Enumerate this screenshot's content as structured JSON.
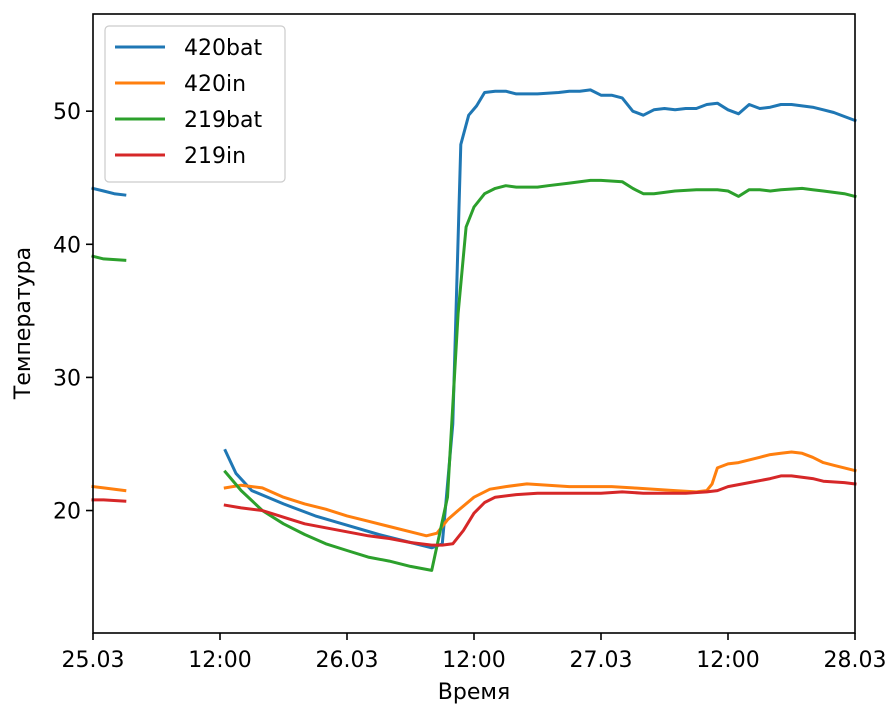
{
  "chart_data": {
    "type": "line",
    "title": "",
    "xlabel": "Время",
    "ylabel": "Температура",
    "xlim": [
      "2019-03-25T00:00",
      "2019-03-28T00:00"
    ],
    "ylim": [
      10.8,
      57.3
    ],
    "x_ticks": [
      {
        "value": "2019-03-25T00:00",
        "label": "25.03"
      },
      {
        "value": "2019-03-25T12:00",
        "label": "12:00"
      },
      {
        "value": "2019-03-26T00:00",
        "label": "26.03"
      },
      {
        "value": "2019-03-26T12:00",
        "label": "12:00"
      },
      {
        "value": "2019-03-27T00:00",
        "label": "27.03"
      },
      {
        "value": "2019-03-27T12:00",
        "label": "12:00"
      },
      {
        "value": "2019-03-28T00:00",
        "label": "28.03"
      }
    ],
    "y_ticks": [
      {
        "value": 20,
        "label": "20"
      },
      {
        "value": 30,
        "label": "30"
      },
      {
        "value": 40,
        "label": "40"
      },
      {
        "value": 50,
        "label": "50"
      }
    ],
    "grid": false,
    "legend_position": "top-left",
    "series": [
      {
        "name": "420bat",
        "color": "#1f77b4",
        "segments": [
          [
            [
              "2019-03-25T00:00",
              44.2
            ],
            [
              "2019-03-25T01:00",
              44.0
            ],
            [
              "2019-03-25T02:00",
              43.8
            ],
            [
              "2019-03-25T03:00",
              43.7
            ]
          ],
          [
            [
              "2019-03-25T12:30",
              24.5
            ],
            [
              "2019-03-25T13:30",
              22.8
            ],
            [
              "2019-03-25T15:00",
              21.5
            ],
            [
              "2019-03-25T18:00",
              20.5
            ],
            [
              "2019-03-25T21:00",
              19.6
            ],
            [
              "2019-03-26T00:00",
              18.9
            ],
            [
              "2019-03-26T03:00",
              18.2
            ],
            [
              "2019-03-26T06:00",
              17.6
            ],
            [
              "2019-03-26T08:00",
              17.2
            ],
            [
              "2019-03-26T09:00",
              17.5
            ],
            [
              "2019-03-26T10:00",
              26.5
            ],
            [
              "2019-03-26T10:45",
              47.5
            ],
            [
              "2019-03-26T11:30",
              49.7
            ],
            [
              "2019-03-26T12:15",
              50.4
            ],
            [
              "2019-03-26T13:00",
              51.4
            ],
            [
              "2019-03-26T14:00",
              51.5
            ],
            [
              "2019-03-26T15:00",
              51.5
            ],
            [
              "2019-03-26T16:00",
              51.3
            ],
            [
              "2019-03-26T18:00",
              51.3
            ],
            [
              "2019-03-26T20:00",
              51.4
            ],
            [
              "2019-03-26T21:00",
              51.5
            ],
            [
              "2019-03-26T22:00",
              51.5
            ],
            [
              "2019-03-26T23:00",
              51.6
            ],
            [
              "2019-03-27T00:00",
              51.2
            ],
            [
              "2019-03-27T01:00",
              51.2
            ],
            [
              "2019-03-27T02:00",
              51.0
            ],
            [
              "2019-03-27T03:00",
              50.0
            ],
            [
              "2019-03-27T04:00",
              49.7
            ],
            [
              "2019-03-27T05:00",
              50.1
            ],
            [
              "2019-03-27T06:00",
              50.2
            ],
            [
              "2019-03-27T07:00",
              50.1
            ],
            [
              "2019-03-27T08:00",
              50.2
            ],
            [
              "2019-03-27T09:00",
              50.2
            ],
            [
              "2019-03-27T10:00",
              50.5
            ],
            [
              "2019-03-27T11:00",
              50.6
            ],
            [
              "2019-03-27T12:00",
              50.1
            ],
            [
              "2019-03-27T13:00",
              49.8
            ],
            [
              "2019-03-27T14:00",
              50.5
            ],
            [
              "2019-03-27T15:00",
              50.2
            ],
            [
              "2019-03-27T16:00",
              50.3
            ],
            [
              "2019-03-27T17:00",
              50.5
            ],
            [
              "2019-03-27T18:00",
              50.5
            ],
            [
              "2019-03-27T19:00",
              50.4
            ],
            [
              "2019-03-27T20:00",
              50.3
            ],
            [
              "2019-03-27T21:00",
              50.1
            ],
            [
              "2019-03-27T22:00",
              49.9
            ],
            [
              "2019-03-27T23:00",
              49.6
            ],
            [
              "2019-03-28T00:00",
              49.3
            ]
          ]
        ]
      },
      {
        "name": "420in",
        "color": "#ff7f0e",
        "segments": [
          [
            [
              "2019-03-25T00:00",
              21.8
            ],
            [
              "2019-03-25T01:00",
              21.7
            ],
            [
              "2019-03-25T03:00",
              21.5
            ]
          ],
          [
            [
              "2019-03-25T12:30",
              21.7
            ],
            [
              "2019-03-25T14:00",
              21.9
            ],
            [
              "2019-03-25T16:00",
              21.7
            ],
            [
              "2019-03-25T18:00",
              21.0
            ],
            [
              "2019-03-25T20:00",
              20.5
            ],
            [
              "2019-03-25T22:00",
              20.1
            ],
            [
              "2019-03-26T00:00",
              19.6
            ],
            [
              "2019-03-26T02:00",
              19.2
            ],
            [
              "2019-03-26T04:00",
              18.8
            ],
            [
              "2019-03-26T06:00",
              18.4
            ],
            [
              "2019-03-26T07:30",
              18.1
            ],
            [
              "2019-03-26T08:30",
              18.3
            ],
            [
              "2019-03-26T09:30",
              19.3
            ],
            [
              "2019-03-26T10:30",
              20.0
            ],
            [
              "2019-03-26T12:00",
              21.0
            ],
            [
              "2019-03-26T13:30",
              21.6
            ],
            [
              "2019-03-26T15:00",
              21.8
            ],
            [
              "2019-03-26T17:00",
              22.0
            ],
            [
              "2019-03-26T19:00",
              21.9
            ],
            [
              "2019-03-26T21:00",
              21.8
            ],
            [
              "2019-03-26T23:00",
              21.8
            ],
            [
              "2019-03-27T01:00",
              21.8
            ],
            [
              "2019-03-27T03:00",
              21.7
            ],
            [
              "2019-03-27T05:00",
              21.6
            ],
            [
              "2019-03-27T07:00",
              21.5
            ],
            [
              "2019-03-27T09:00",
              21.4
            ],
            [
              "2019-03-27T10:00",
              21.5
            ],
            [
              "2019-03-27T10:30",
              22.0
            ],
            [
              "2019-03-27T11:00",
              23.2
            ],
            [
              "2019-03-27T12:00",
              23.5
            ],
            [
              "2019-03-27T13:00",
              23.6
            ],
            [
              "2019-03-27T14:00",
              23.8
            ],
            [
              "2019-03-27T15:00",
              24.0
            ],
            [
              "2019-03-27T16:00",
              24.2
            ],
            [
              "2019-03-27T17:00",
              24.3
            ],
            [
              "2019-03-27T18:00",
              24.4
            ],
            [
              "2019-03-27T19:00",
              24.3
            ],
            [
              "2019-03-27T20:00",
              24.0
            ],
            [
              "2019-03-27T21:00",
              23.6
            ],
            [
              "2019-03-27T22:00",
              23.4
            ],
            [
              "2019-03-27T23:00",
              23.2
            ],
            [
              "2019-03-28T00:00",
              23.0
            ]
          ]
        ]
      },
      {
        "name": "219bat",
        "color": "#2ca02c",
        "segments": [
          [
            [
              "2019-03-25T00:00",
              39.1
            ],
            [
              "2019-03-25T01:00",
              38.9
            ],
            [
              "2019-03-25T03:00",
              38.8
            ]
          ],
          [
            [
              "2019-03-25T12:30",
              22.9
            ],
            [
              "2019-03-25T14:00",
              21.5
            ],
            [
              "2019-03-25T16:00",
              20.0
            ],
            [
              "2019-03-25T18:00",
              19.0
            ],
            [
              "2019-03-25T20:00",
              18.2
            ],
            [
              "2019-03-25T22:00",
              17.5
            ],
            [
              "2019-03-26T00:00",
              17.0
            ],
            [
              "2019-03-26T02:00",
              16.5
            ],
            [
              "2019-03-26T04:00",
              16.2
            ],
            [
              "2019-03-26T06:00",
              15.8
            ],
            [
              "2019-03-26T08:00",
              15.5
            ],
            [
              "2019-03-26T09:30",
              21.0
            ],
            [
              "2019-03-26T10:30",
              34.8
            ],
            [
              "2019-03-26T11:15",
              41.3
            ],
            [
              "2019-03-26T12:00",
              42.8
            ],
            [
              "2019-03-26T13:00",
              43.8
            ],
            [
              "2019-03-26T14:00",
              44.2
            ],
            [
              "2019-03-26T15:00",
              44.4
            ],
            [
              "2019-03-26T16:00",
              44.3
            ],
            [
              "2019-03-26T18:00",
              44.3
            ],
            [
              "2019-03-26T19:00",
              44.4
            ],
            [
              "2019-03-26T21:00",
              44.6
            ],
            [
              "2019-03-26T23:00",
              44.8
            ],
            [
              "2019-03-27T00:00",
              44.8
            ],
            [
              "2019-03-27T02:00",
              44.7
            ],
            [
              "2019-03-27T03:00",
              44.2
            ],
            [
              "2019-03-27T04:00",
              43.8
            ],
            [
              "2019-03-27T05:00",
              43.8
            ],
            [
              "2019-03-27T07:00",
              44.0
            ],
            [
              "2019-03-27T09:00",
              44.1
            ],
            [
              "2019-03-27T11:00",
              44.1
            ],
            [
              "2019-03-27T12:00",
              44.0
            ],
            [
              "2019-03-27T13:00",
              43.6
            ],
            [
              "2019-03-27T14:00",
              44.1
            ],
            [
              "2019-03-27T15:00",
              44.1
            ],
            [
              "2019-03-27T16:00",
              44.0
            ],
            [
              "2019-03-27T17:00",
              44.1
            ],
            [
              "2019-03-27T19:00",
              44.2
            ],
            [
              "2019-03-27T20:00",
              44.1
            ],
            [
              "2019-03-27T21:00",
              44.0
            ],
            [
              "2019-03-27T22:00",
              43.9
            ],
            [
              "2019-03-27T23:00",
              43.8
            ],
            [
              "2019-03-28T00:00",
              43.6
            ]
          ]
        ]
      },
      {
        "name": "219in",
        "color": "#d62728",
        "segments": [
          [
            [
              "2019-03-25T00:00",
              20.8
            ],
            [
              "2019-03-25T01:00",
              20.8
            ],
            [
              "2019-03-25T03:00",
              20.7
            ]
          ],
          [
            [
              "2019-03-25T12:30",
              20.4
            ],
            [
              "2019-03-25T14:00",
              20.2
            ],
            [
              "2019-03-25T16:00",
              20.0
            ],
            [
              "2019-03-25T18:00",
              19.5
            ],
            [
              "2019-03-25T20:00",
              19.0
            ],
            [
              "2019-03-25T22:00",
              18.7
            ],
            [
              "2019-03-26T00:00",
              18.4
            ],
            [
              "2019-03-26T02:00",
              18.1
            ],
            [
              "2019-03-26T04:00",
              17.9
            ],
            [
              "2019-03-26T06:00",
              17.6
            ],
            [
              "2019-03-26T08:00",
              17.4
            ],
            [
              "2019-03-26T09:00",
              17.4
            ],
            [
              "2019-03-26T10:00",
              17.5
            ],
            [
              "2019-03-26T11:00",
              18.5
            ],
            [
              "2019-03-26T12:00",
              19.8
            ],
            [
              "2019-03-26T13:00",
              20.6
            ],
            [
              "2019-03-26T14:00",
              21.0
            ],
            [
              "2019-03-26T16:00",
              21.2
            ],
            [
              "2019-03-26T18:00",
              21.3
            ],
            [
              "2019-03-26T20:00",
              21.3
            ],
            [
              "2019-03-26T22:00",
              21.3
            ],
            [
              "2019-03-27T00:00",
              21.3
            ],
            [
              "2019-03-27T02:00",
              21.4
            ],
            [
              "2019-03-27T04:00",
              21.3
            ],
            [
              "2019-03-27T06:00",
              21.3
            ],
            [
              "2019-03-27T08:00",
              21.3
            ],
            [
              "2019-03-27T10:00",
              21.4
            ],
            [
              "2019-03-27T11:00",
              21.5
            ],
            [
              "2019-03-27T12:00",
              21.8
            ],
            [
              "2019-03-27T14:00",
              22.1
            ],
            [
              "2019-03-27T16:00",
              22.4
            ],
            [
              "2019-03-27T17:00",
              22.6
            ],
            [
              "2019-03-27T18:00",
              22.6
            ],
            [
              "2019-03-27T20:00",
              22.4
            ],
            [
              "2019-03-27T21:00",
              22.2
            ],
            [
              "2019-03-27T23:00",
              22.1
            ],
            [
              "2019-03-28T00:00",
              22.0
            ]
          ]
        ]
      }
    ]
  }
}
